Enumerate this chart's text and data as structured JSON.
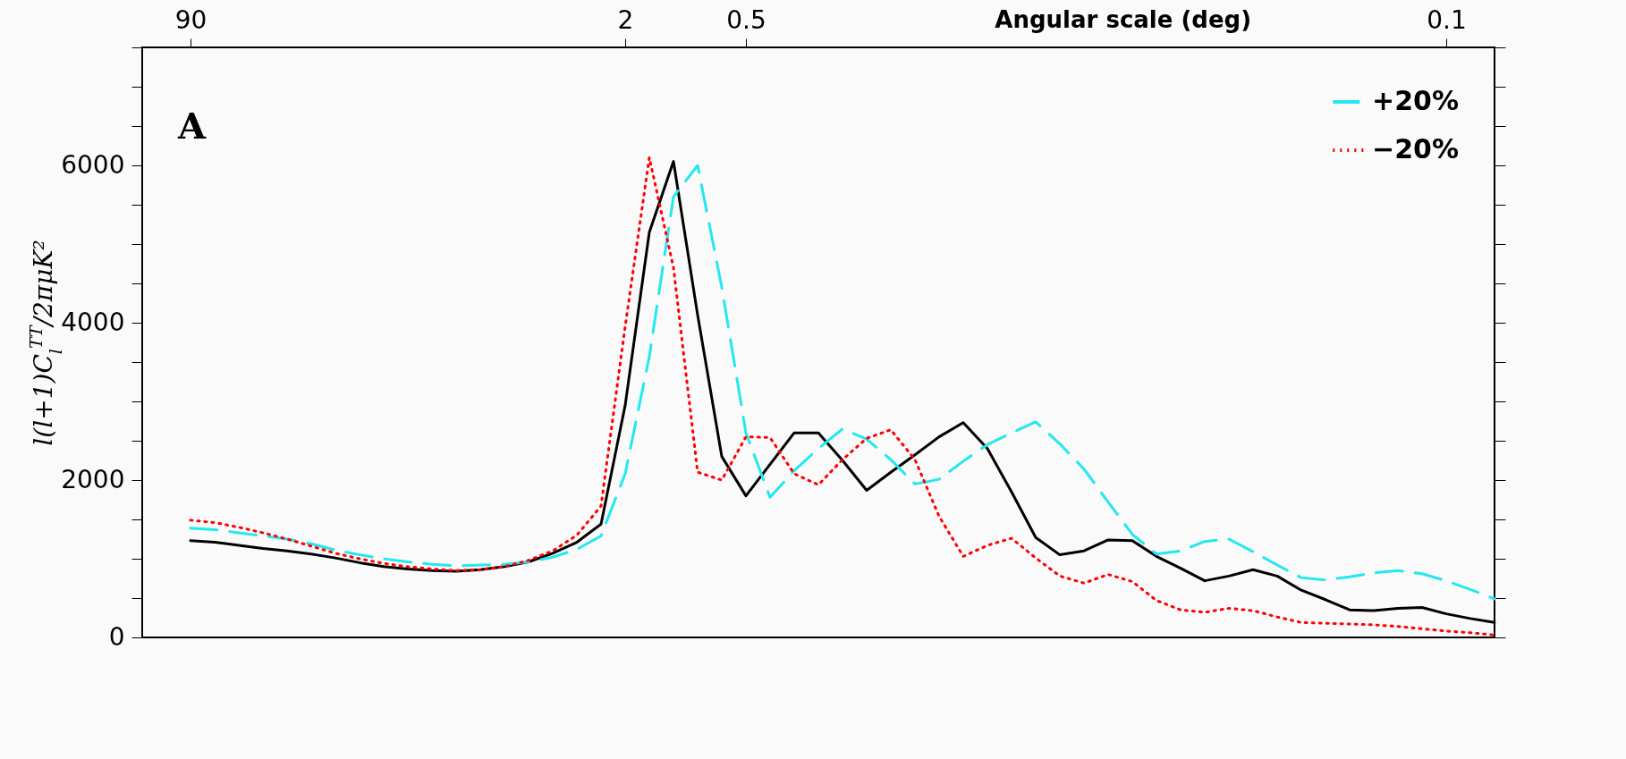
{
  "chart_data": {
    "type": "line",
    "xlabel": "Angular scale (deg)",
    "ylabel": "l(l+1)C$_{l}$$^{TT}$/2πμK²",
    "annotations": [
      "A"
    ],
    "legend": "top right",
    "categories": [
      null,
      null,
      "90",
      null,
      null,
      null,
      null,
      null,
      null,
      null,
      null,
      null,
      null,
      null,
      null,
      null,
      null,
      null,
      null,
      null,
      "2",
      null,
      null,
      null,
      null,
      "0.5",
      null,
      null,
      null,
      null,
      null,
      null,
      null,
      null,
      null,
      null,
      null,
      null,
      null,
      null,
      null,
      null,
      null,
      null,
      null,
      null,
      null,
      null,
      null,
      null,
      null,
      null,
      null,
      null,
      "0.1",
      null,
      null
    ],
    "ylim": [
      0,
      7500
    ],
    "yticks": [
      0,
      {
        "value": 500,
        "label": null
      },
      {
        "value": 1000,
        "label": null
      },
      {
        "value": 1500,
        "label": null
      },
      2000,
      {
        "value": 2500,
        "label": null
      },
      {
        "value": 3000,
        "label": null
      },
      {
        "value": 3500,
        "label": null
      },
      4000,
      {
        "value": 4500,
        "label": null
      },
      {
        "value": 5000,
        "label": null
      },
      {
        "value": 5500,
        "label": null
      },
      6000,
      {
        "value": 6500,
        "label": null
      },
      {
        "value": 7000,
        "label": null
      },
      {
        "value": 7500,
        "label": null
      }
    ],
    "series": [
      {
        "color": "#000000",
        "line_style": "solid",
        "values": [
          null,
          null,
          1230,
          1210,
          1170,
          1130,
          1100,
          1060,
          1010,
          950,
          900,
          870,
          850,
          840,
          860,
          900,
          960,
          1070,
          1210,
          1440,
          2950,
          5150,
          6050,
          4100,
          2300,
          1800,
          2200,
          2600,
          2600,
          2250,
          1870,
          2100,
          2320,
          2550,
          2730,
          2400,
          1850,
          1270,
          1050,
          1100,
          1240,
          1230,
          1030,
          880,
          720,
          780,
          860,
          780,
          600,
          480,
          350,
          340,
          370,
          380,
          300,
          240,
          190
        ]
      },
      {
        "name": "+20%",
        "color": "#22e8f0",
        "line_style": "dashed",
        "values": [
          null,
          null,
          1390,
          1370,
          1330,
          1290,
          1250,
          1190,
          1110,
          1050,
          1000,
          960,
          930,
          910,
          920,
          930,
          960,
          1020,
          1120,
          1290,
          2080,
          3570,
          5600,
          6000,
          4450,
          2600,
          1780,
          2120,
          2400,
          2650,
          2520,
          2260,
          1950,
          2010,
          2240,
          2450,
          2600,
          2740,
          2460,
          2140,
          1720,
          1310,
          1060,
          1100,
          1220,
          1250,
          1090,
          920,
          760,
          730,
          770,
          820,
          850,
          810,
          720,
          610,
          490
        ]
      },
      {
        "name": "−20%",
        "color": "#ff0000",
        "line_style": "dotted",
        "values": [
          null,
          null,
          1490,
          1460,
          1400,
          1330,
          1250,
          1160,
          1070,
          1000,
          940,
          900,
          870,
          850,
          860,
          900,
          980,
          1100,
          1300,
          1670,
          3950,
          6100,
          4700,
          2100,
          2000,
          2550,
          2540,
          2080,
          1940,
          2260,
          2530,
          2640,
          2260,
          1540,
          1030,
          1170,
          1260,
          1010,
          780,
          690,
          800,
          710,
          470,
          350,
          320,
          370,
          340,
          260,
          190,
          180,
          170,
          160,
          140,
          110,
          80,
          60,
          30
        ]
      }
    ]
  }
}
